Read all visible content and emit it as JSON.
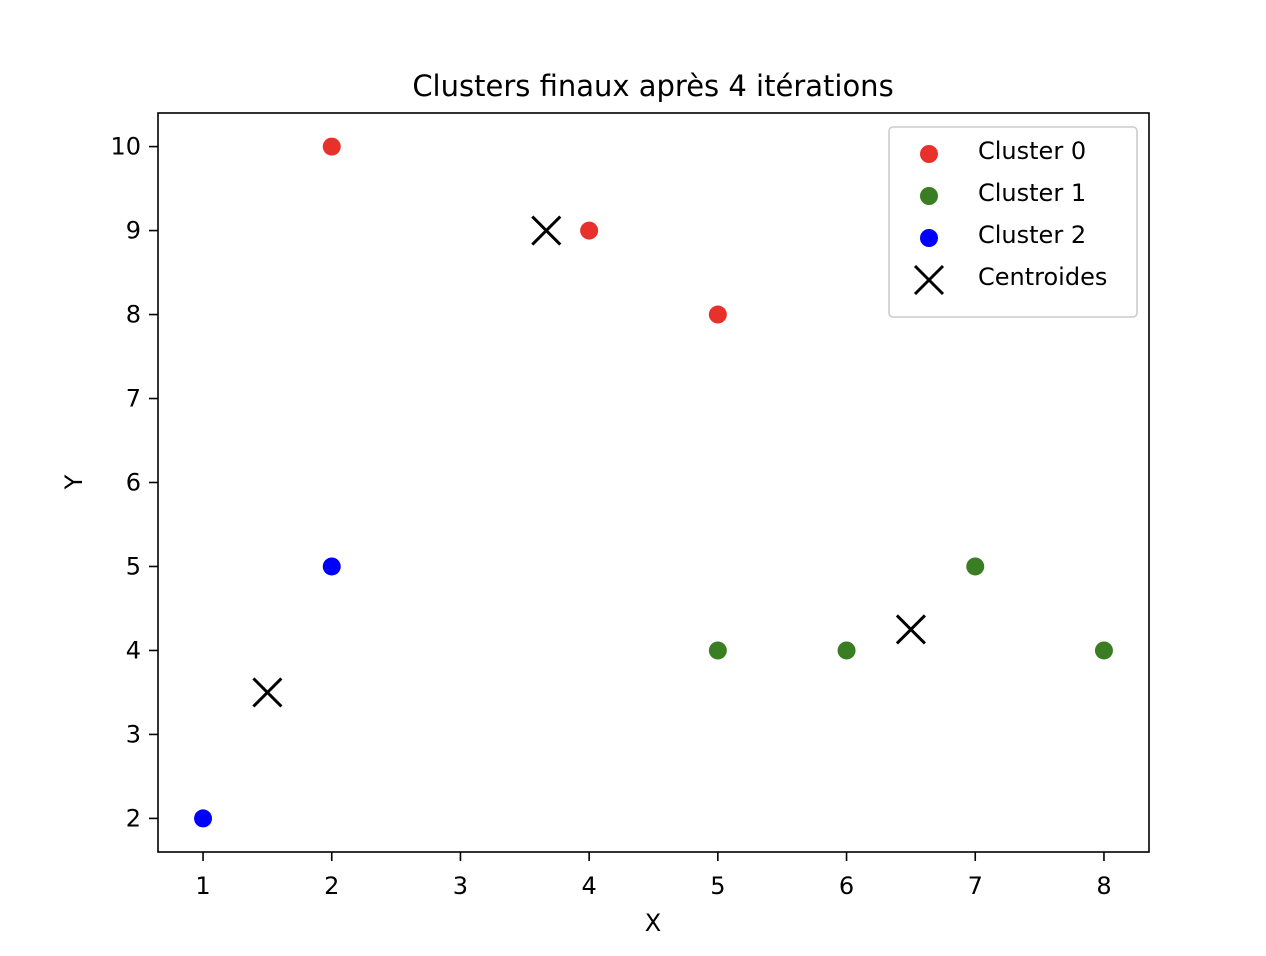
{
  "chart_data": {
    "type": "scatter",
    "title": "Clusters finaux après 4 itérations",
    "xlabel": "X",
    "ylabel": "Y",
    "xlim": [
      0.65,
      8.35
    ],
    "ylim": [
      1.6,
      10.4
    ],
    "xticks": [
      1,
      2,
      3,
      4,
      5,
      6,
      7,
      8
    ],
    "yticks": [
      2,
      3,
      4,
      5,
      6,
      7,
      8,
      9,
      10
    ],
    "grid": false,
    "legend_position": "top-right",
    "series": [
      {
        "name": "Cluster 0",
        "marker": "circle",
        "color": "#e8312a",
        "points": [
          [
            2,
            10
          ],
          [
            4,
            9
          ],
          [
            5,
            8
          ]
        ]
      },
      {
        "name": "Cluster 1",
        "marker": "circle",
        "color": "#3a7d22",
        "points": [
          [
            5,
            4
          ],
          [
            6,
            4
          ],
          [
            7,
            5
          ],
          [
            8,
            4
          ]
        ]
      },
      {
        "name": "Cluster 2",
        "marker": "circle",
        "color": "#0000ff",
        "points": [
          [
            1,
            2
          ],
          [
            2,
            5
          ]
        ]
      },
      {
        "name": "Centroides",
        "marker": "x",
        "color": "#000000",
        "points": [
          [
            3.667,
            9
          ],
          [
            6.5,
            4.25
          ],
          [
            1.5,
            3.5
          ]
        ]
      }
    ]
  }
}
